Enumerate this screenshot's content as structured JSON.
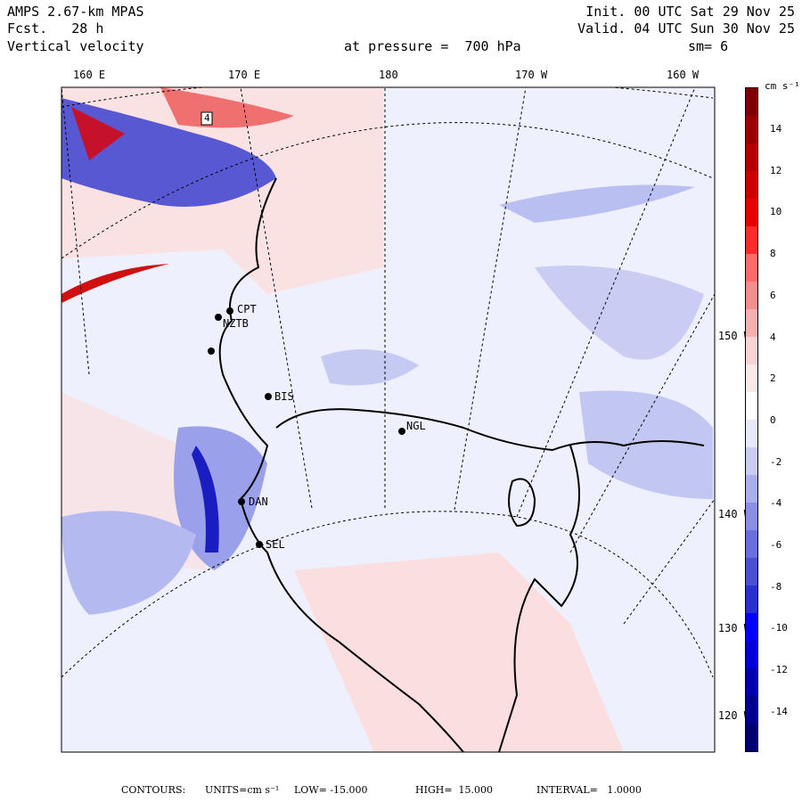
{
  "header": {
    "model": "AMPS 2.67-km MPAS",
    "fcst": "Fcst.   28 h",
    "variable": "Vertical velocity",
    "init": "Init. 00 UTC Sat 29 Nov 25",
    "valid": "Valid. 04 UTC Sun 30 Nov 25",
    "pressure": "at pressure =  700 hPa",
    "smooth": "sm= 6"
  },
  "longitude_labels": [
    "160 E",
    "170 E",
    "180",
    "170 W",
    "160 W"
  ],
  "latitude_labels": [
    "150 W",
    "140 W",
    "130 W",
    "120 W"
  ],
  "stations": [
    "CPT",
    "NZTB",
    "BIS",
    "NGL",
    "DAN",
    "SEL",
    "4"
  ],
  "colorbar": {
    "units": "cm s⁻¹",
    "ticks": [
      "14",
      "12",
      "10",
      "8",
      "6",
      "4",
      "2",
      "0",
      "-2",
      "-4",
      "-6",
      "-8",
      "-10",
      "-12",
      "-14"
    ],
    "colors": [
      "#7f0000",
      "#9a0000",
      "#b40000",
      "#cc0000",
      "#e60000",
      "#ff2a2a",
      "#ff6a6a",
      "#f48f8f",
      "#f7b0b0",
      "#fbd3d3",
      "#fde8e8",
      "#ffffff",
      "#e6e9fb",
      "#c9cdf4",
      "#a9aeec",
      "#8a8fe3",
      "#6a6fdb",
      "#4b50d3",
      "#2a2fd0",
      "#0000ff",
      "#0000d8",
      "#0000b0",
      "#000090",
      "#000070"
    ]
  },
  "footer": {
    "contours": "CONTOURS:",
    "units": "UNITS=cm s⁻¹",
    "low": "LOW= -15.000",
    "high": "HIGH=  15.000",
    "interval": "INTERVAL=   1.0000"
  }
}
